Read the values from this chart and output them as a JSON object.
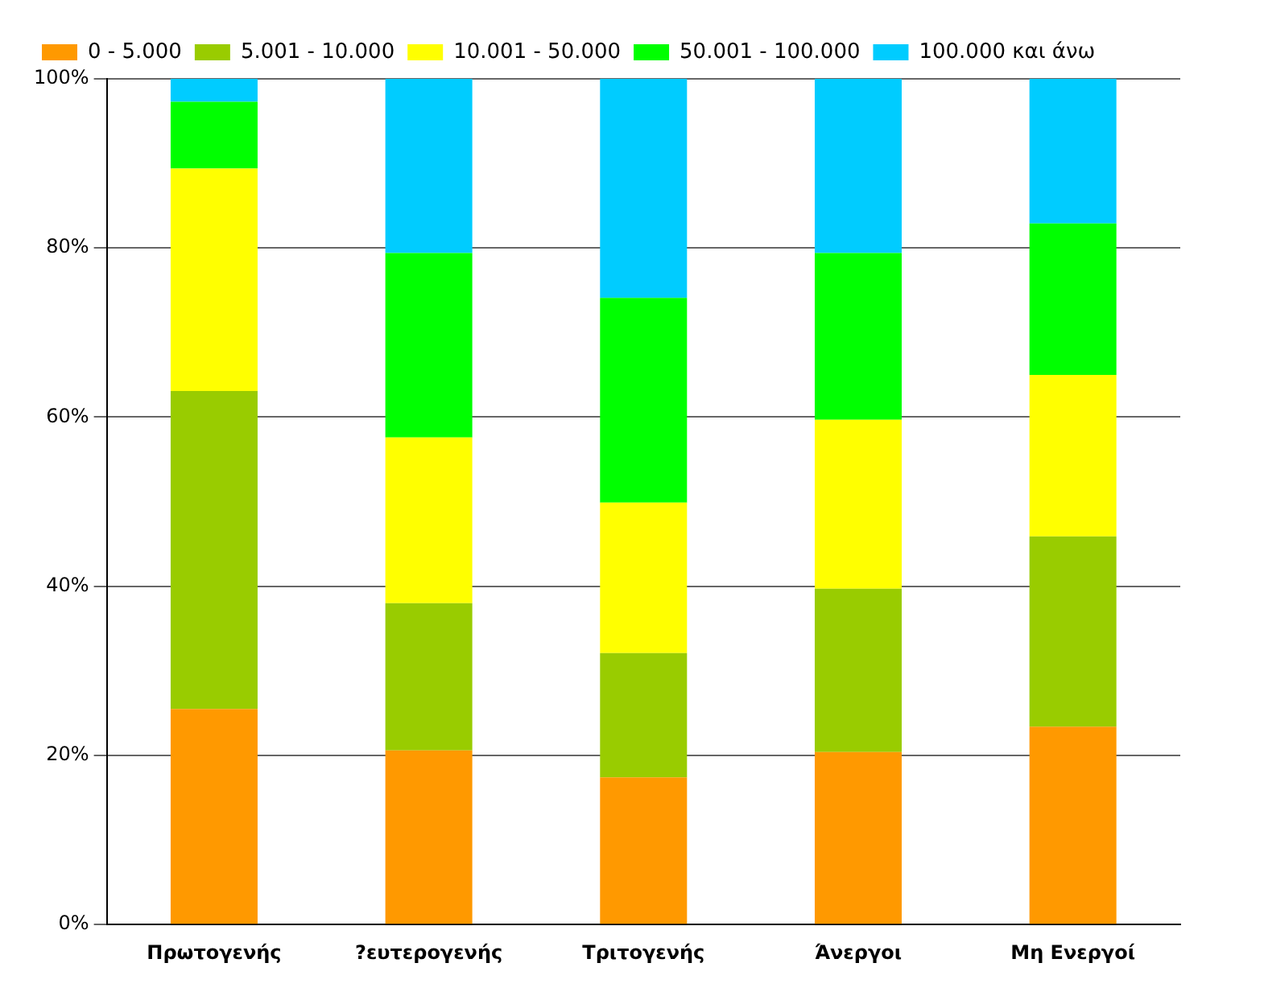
{
  "chart_data": {
    "type": "bar",
    "stacked": true,
    "categories": [
      "Πρωτογενής",
      "?ευτερογενής",
      "Τριτογενής",
      "Άνεργοι",
      "Μη Ενεργοί"
    ],
    "series": [
      {
        "name": "0 - 5.000",
        "color": "#ff9900",
        "values": [
          25.5,
          20.6,
          17.4,
          20.4,
          23.4
        ]
      },
      {
        "name": "5.001 - 10.000",
        "color": "#99cc00",
        "values": [
          37.6,
          17.4,
          14.7,
          19.3,
          22.5
        ]
      },
      {
        "name": "10.001 - 50.000",
        "color": "#ffff00",
        "values": [
          26.3,
          19.6,
          17.8,
          20.0,
          19.1
        ]
      },
      {
        "name": "50.001 - 100.000",
        "color": "#00ff00",
        "values": [
          7.9,
          21.8,
          24.2,
          19.7,
          17.9
        ]
      },
      {
        "name": "100.000 και άνω",
        "color": "#00ccff",
        "values": [
          2.7,
          20.6,
          25.9,
          20.6,
          17.1
        ]
      }
    ],
    "ylim": [
      0,
      100
    ],
    "yticks": [
      {
        "value": 0,
        "label": "0%"
      },
      {
        "value": 20,
        "label": "20%"
      },
      {
        "value": 40,
        "label": "40%"
      },
      {
        "value": 60,
        "label": "60%"
      },
      {
        "value": 80,
        "label": "80%"
      },
      {
        "value": 100,
        "label": "100%"
      }
    ],
    "grid": "y",
    "legend": "top"
  }
}
